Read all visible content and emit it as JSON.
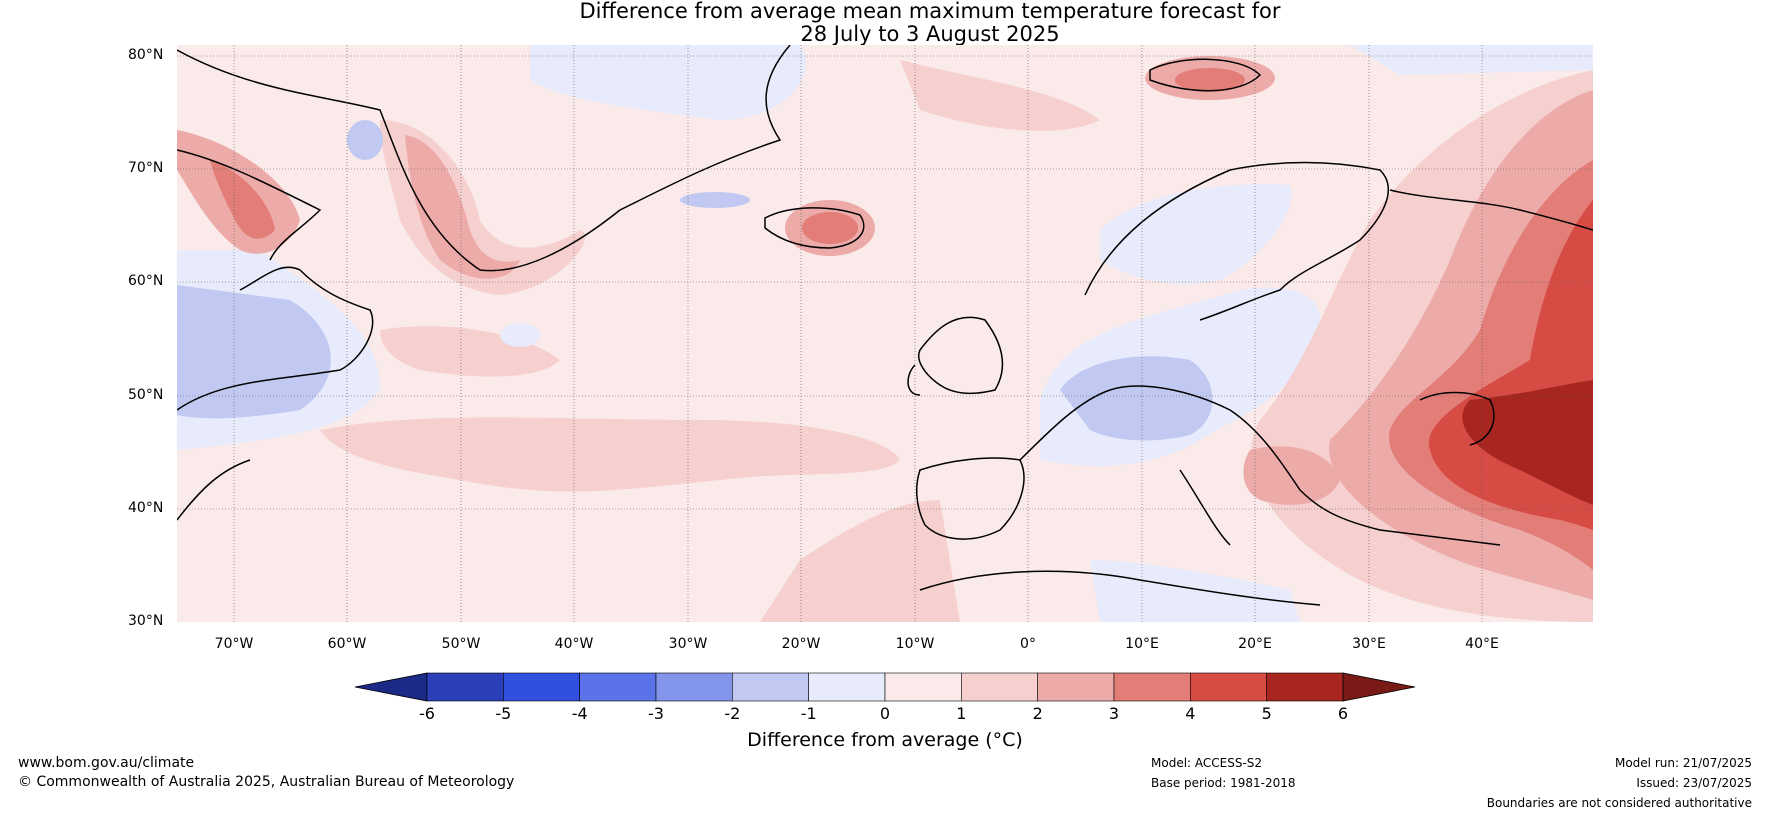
{
  "title_line1": "Difference from average mean maximum temperature forecast for",
  "title_line2": "28 July to 3 August 2025",
  "lat_labels": [
    "80°N",
    "70°N",
    "60°N",
    "50°N",
    "40°N",
    "30°N"
  ],
  "lon_labels": [
    "70°W",
    "60°W",
    "50°W",
    "40°W",
    "30°W",
    "20°W",
    "10°W",
    "0°",
    "10°E",
    "20°E",
    "30°E",
    "40°E"
  ],
  "colorbar": {
    "title": "Difference from average (°C)",
    "ticks": [
      "-6",
      "-5",
      "-4",
      "-3",
      "-2",
      "-1",
      "0",
      "1",
      "2",
      "3",
      "4",
      "5",
      "6"
    ],
    "colors": [
      "#1b2a87",
      "#2a3fb8",
      "#3150e0",
      "#5a73e8",
      "#8395ea",
      "#c1c9f2",
      "#e8ebfb",
      "#fbeaea",
      "#f5d0cf",
      "#ecaaa8",
      "#e27d78",
      "#d64b43",
      "#a72720",
      "#7a1a16"
    ]
  },
  "footer": {
    "website": "www.bom.gov.au/climate",
    "copyright": "© Commonwealth of Australia 2025, Australian Bureau of Meteorology",
    "model": "Model: ACCESS-S2",
    "base_period": "Base period: 1981-2018",
    "model_run": "Model run: 21/07/2025",
    "issued": "Issued: 23/07/2025",
    "disclaimer": "Boundaries are not considered authoritative"
  },
  "map_colors": {
    "ocean_base": "#fbeaea",
    "coast": "#000000",
    "borders": "#808080",
    "grid": "#555555"
  }
}
